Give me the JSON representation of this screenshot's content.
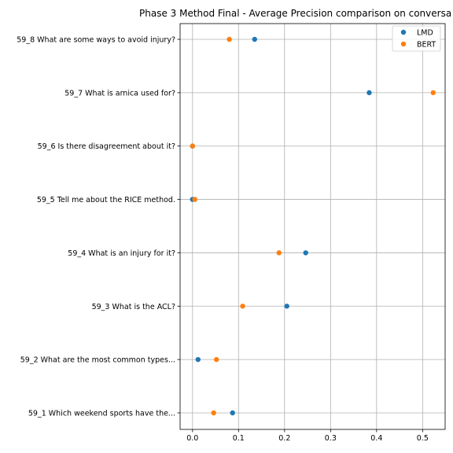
{
  "chart_data": {
    "type": "scatter",
    "title": "Phase 3 Method Final - Average Precision comparison on conversa",
    "xlabel": "",
    "ylabel": "",
    "xlim": [
      -0.027,
      0.549
    ],
    "xticks": [
      "0.0",
      "0.1",
      "0.2",
      "0.3",
      "0.4",
      "0.5"
    ],
    "xtick_values": [
      0.0,
      0.1,
      0.2,
      0.3,
      0.4,
      0.5
    ],
    "grid": true,
    "legend_position": "top-right",
    "categories": [
      "59_8 What are some ways to avoid injury?",
      "59_7 What is arnica used for?",
      "59_6 Is there disagreement about it?",
      "59_5 Tell me about the RICE method.",
      "59_4 What is an injury for it?",
      "59_3 What is the ACL?",
      "59_2 What are the most common types...",
      "59_1 Which weekend sports have the..."
    ],
    "series": [
      {
        "name": "LMD",
        "color": "#1f77b4",
        "values": [
          0.135,
          0.384,
          0.0,
          0.0,
          0.246,
          0.205,
          0.012,
          0.087
        ]
      },
      {
        "name": "BERT",
        "color": "#ff7f0e",
        "values": [
          0.08,
          0.523,
          0.0,
          0.005,
          0.188,
          0.109,
          0.052,
          0.046
        ]
      }
    ]
  }
}
